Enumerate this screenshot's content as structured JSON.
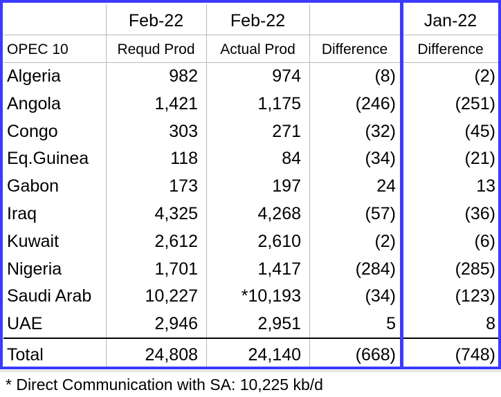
{
  "header": {
    "row1": [
      "",
      "Feb-22",
      "Feb-22",
      "",
      "Jan-22"
    ],
    "row2": [
      "OPEC 10",
      "Requd Prod",
      "Actual Prod",
      "Difference",
      "Difference"
    ]
  },
  "rows": [
    {
      "country": "Algeria",
      "required": "982",
      "actual": "974",
      "diff_feb": "(8)",
      "diff_jan": "(2)"
    },
    {
      "country": "Angola",
      "required": "1,421",
      "actual": "1,175",
      "diff_feb": "(246)",
      "diff_jan": "(251)"
    },
    {
      "country": "Congo",
      "required": "303",
      "actual": "271",
      "diff_feb": "(32)",
      "diff_jan": "(45)"
    },
    {
      "country": "Eq.Guinea",
      "required": "118",
      "actual": "84",
      "diff_feb": "(34)",
      "diff_jan": "(21)"
    },
    {
      "country": "Gabon",
      "required": "173",
      "actual": "197",
      "diff_feb": "24",
      "diff_jan": "13"
    },
    {
      "country": "Iraq",
      "required": "4,325",
      "actual": "4,268",
      "diff_feb": "(57)",
      "diff_jan": "(36)"
    },
    {
      "country": "Kuwait",
      "required": "2,612",
      "actual": "2,610",
      "diff_feb": "(2)",
      "diff_jan": "(6)"
    },
    {
      "country": "Nigeria",
      "required": "1,701",
      "actual": "1,417",
      "diff_feb": "(284)",
      "diff_jan": "(285)"
    },
    {
      "country": "Saudi Arab",
      "required": "10,227",
      "actual": "*10,193",
      "diff_feb": "(34)",
      "diff_jan": "(123)"
    },
    {
      "country": "UAE",
      "required": "2,946",
      "actual": "2,951",
      "diff_feb": "5",
      "diff_jan": "8"
    }
  ],
  "total": {
    "label": "Total",
    "required": "24,808",
    "actual": "24,140",
    "diff_feb": "(668)",
    "diff_jan": "(748)"
  },
  "footnote": "* Direct Communication with SA: 10,225 kb/d",
  "colors": {
    "frame": "#3b3bff",
    "grid": "#b9b9b9"
  }
}
